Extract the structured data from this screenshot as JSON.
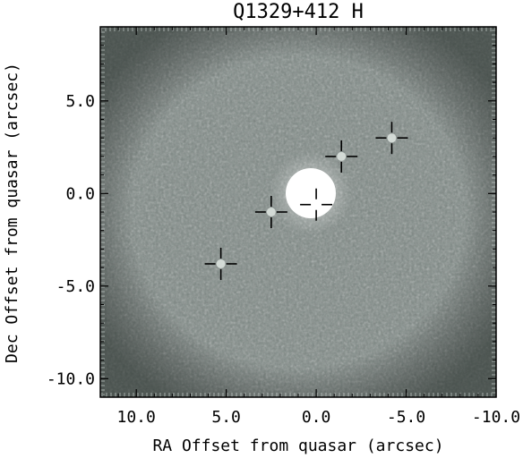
{
  "chart_data": {
    "type": "image",
    "title": "Q1329+412 H",
    "xlabel": "RA Offset from quasar (arcsec)",
    "ylabel": "Dec Offset from quasar (arcsec)",
    "xlim": [
      12.0,
      -10.0
    ],
    "ylim": [
      -11.0,
      9.0
    ],
    "xticks": [
      10.0,
      5.0,
      0.0,
      -5.0,
      -10.0
    ],
    "xtick_labels": [
      "10.0",
      "5.0",
      "0.0",
      "-5.0",
      "-10.0"
    ],
    "yticks": [
      5.0,
      0.0,
      -5.0,
      -10.0
    ],
    "ytick_labels": [
      "5.0",
      "0.0",
      "-5.0",
      "-10.0"
    ],
    "colormap": "grayscale",
    "quasar": {
      "x": 0.0,
      "y": 0.0
    },
    "markers": [
      {
        "x": 0.0,
        "y": -0.6
      },
      {
        "x": 2.5,
        "y": -1.0
      },
      {
        "x": -1.4,
        "y": 2.0
      },
      {
        "x": -4.2,
        "y": 3.0
      },
      {
        "x": 5.3,
        "y": -3.8
      }
    ],
    "marked_sources": [
      {
        "x": 2.5,
        "y": -1.0
      },
      {
        "x": -1.4,
        "y": 2.0
      },
      {
        "x": -4.2,
        "y": 3.0
      },
      {
        "x": 5.3,
        "y": -3.8
      }
    ]
  }
}
